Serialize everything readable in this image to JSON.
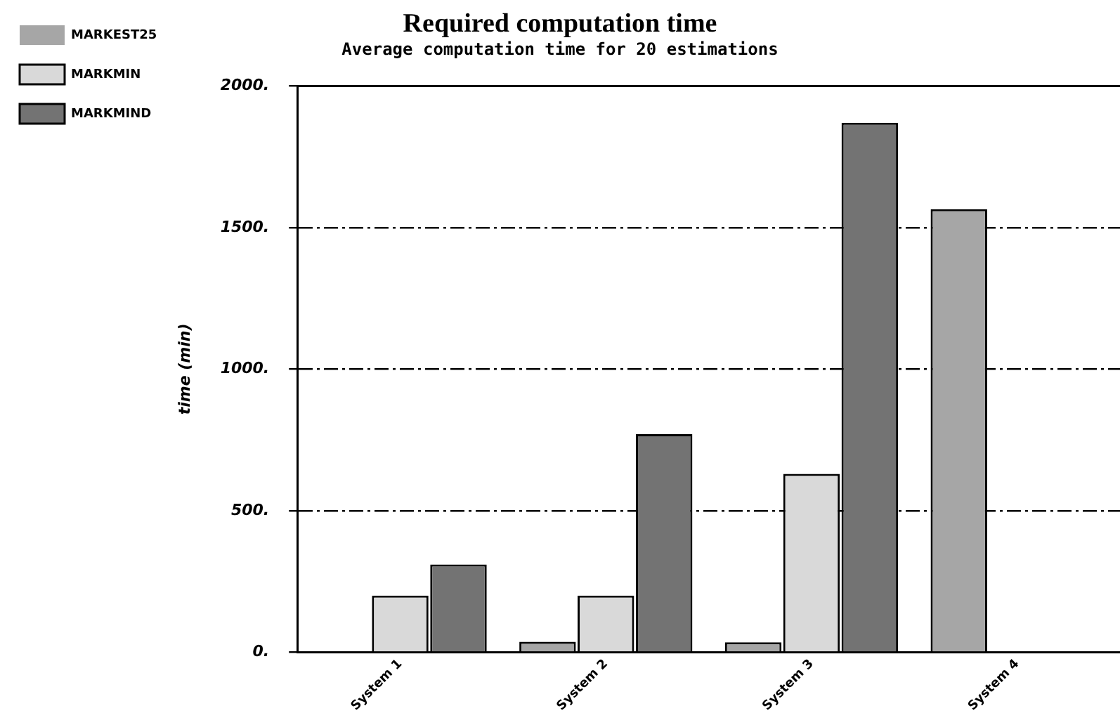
{
  "chart_data": {
    "type": "bar",
    "title": "Required computation time",
    "subtitle": "Average computation time for 20 estimations",
    "ylabel": "time (min)",
    "categories": [
      "System 1",
      "System 2",
      "System 3",
      "System 4"
    ],
    "series": [
      {
        "name": "MARKEST25",
        "color": "#a6a6a6",
        "values": [
          3,
          37,
          35,
          1565
        ]
      },
      {
        "name": "MARKMIN",
        "color": "#d9d9d9",
        "values": [
          200,
          200,
          630,
          null
        ]
      },
      {
        "name": "MARKMIND",
        "color": "#737373",
        "values": [
          310,
          770,
          1870,
          null
        ]
      }
    ],
    "ylim": [
      0,
      2000
    ],
    "yticks": [
      {
        "value": 0,
        "label": "0."
      },
      {
        "value": 500,
        "label": "500."
      },
      {
        "value": 1000,
        "label": "1000."
      },
      {
        "value": 1500,
        "label": "1500."
      },
      {
        "value": 2000,
        "label": "2000."
      }
    ],
    "grid": "y",
    "legend": "top left"
  }
}
